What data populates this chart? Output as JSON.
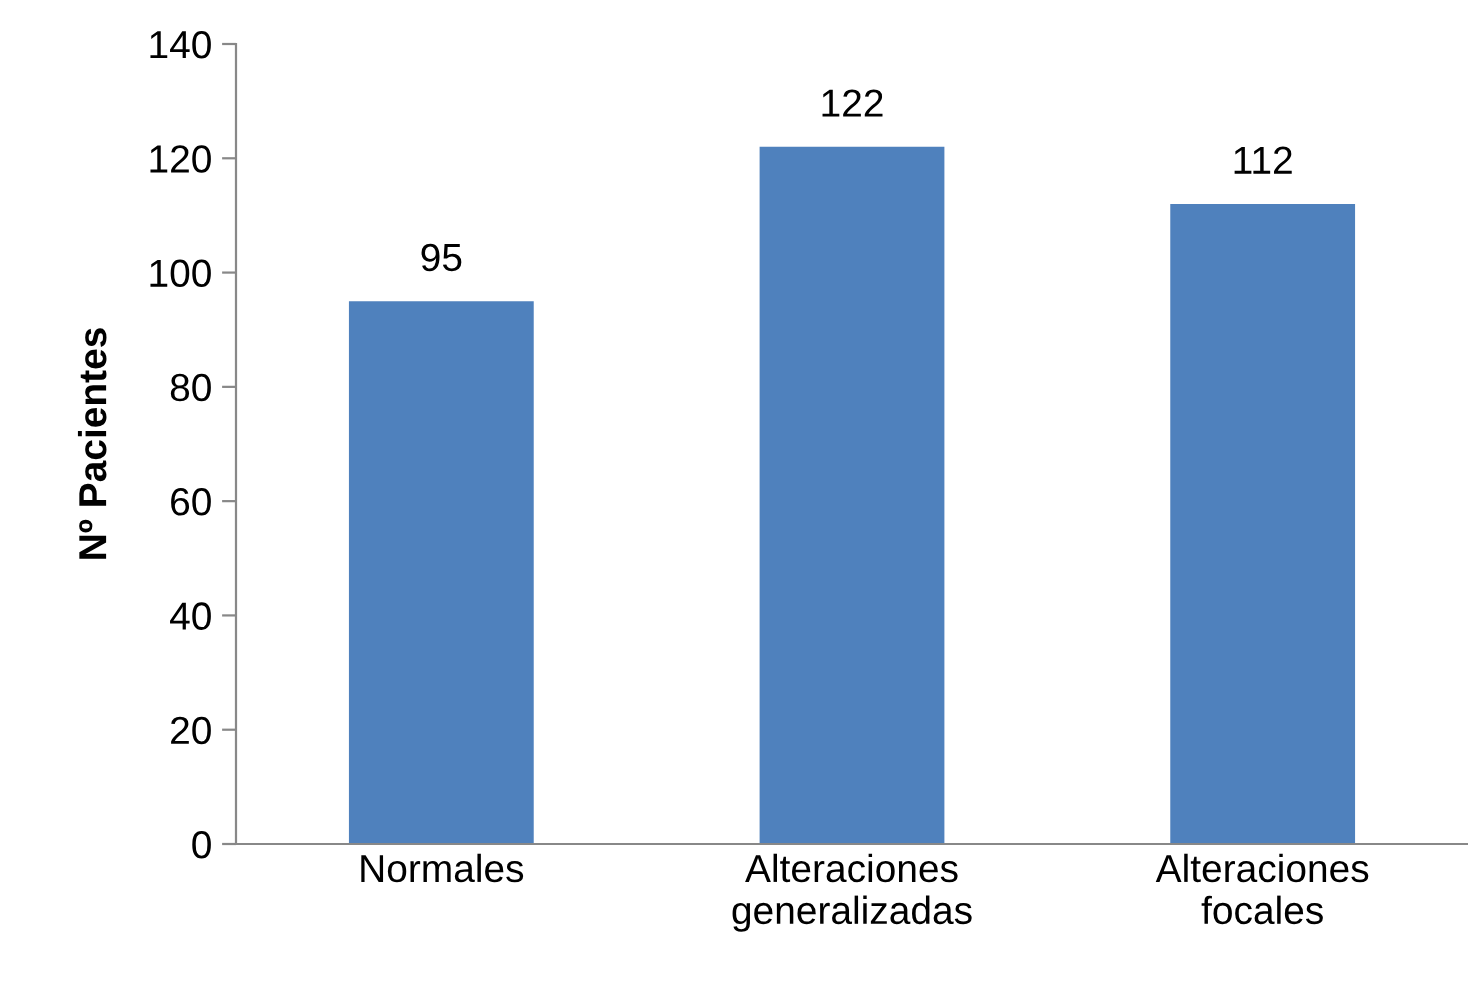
{
  "chart_data": {
    "type": "bar",
    "ylabel": "Nº Pacientes",
    "categories": [
      "Normales",
      "Alteraciones\ngeneralizadas",
      "Alteraciones\nfocales"
    ],
    "values": [
      95,
      122,
      112
    ],
    "color": "#4f81bd",
    "ylim": [
      0,
      140
    ],
    "yticks": [
      0,
      20,
      40,
      60,
      80,
      100,
      120,
      140
    ],
    "grid": false,
    "data_labels": true
  }
}
